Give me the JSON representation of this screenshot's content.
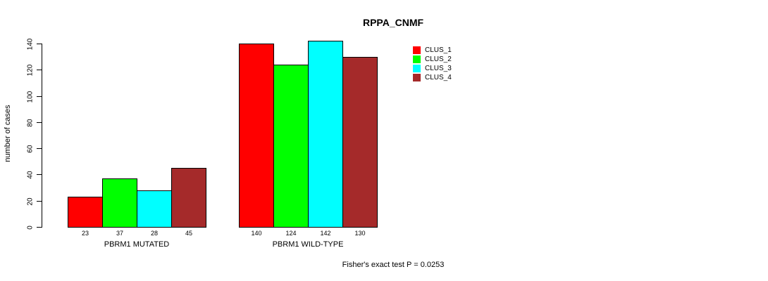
{
  "chart_data": {
    "type": "bar",
    "title": "RPPA_CNMF",
    "ylabel": "number of cases",
    "xlabel": "",
    "ylim": [
      0,
      140
    ],
    "yticks": [
      0,
      20,
      40,
      60,
      80,
      100,
      120,
      140
    ],
    "grid": false,
    "legend_position": "top-right",
    "groups": [
      "PBRM1 MUTATED",
      "PBRM1 WILD-TYPE"
    ],
    "series": [
      {
        "name": "CLUS_1",
        "color": "#ff0000",
        "values": [
          23,
          140
        ]
      },
      {
        "name": "CLUS_2",
        "color": "#00ff00",
        "values": [
          37,
          124
        ]
      },
      {
        "name": "CLUS_3",
        "color": "#00ffff",
        "values": [
          28,
          142
        ]
      },
      {
        "name": "CLUS_4",
        "color": "#a52a2a",
        "values": [
          45,
          130
        ]
      }
    ],
    "bar_labels": [
      [
        23,
        37,
        28,
        45
      ],
      [
        140,
        124,
        142,
        130
      ]
    ],
    "annotation": "Fisher's exact test P = 0.0253"
  }
}
